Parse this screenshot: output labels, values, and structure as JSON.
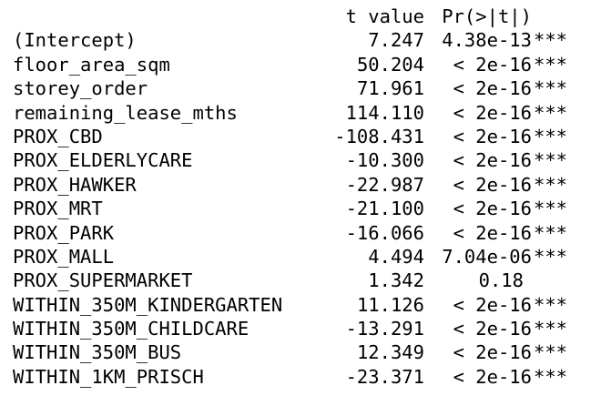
{
  "header": {
    "t_value": "t value",
    "p_value": "Pr(>|t|)"
  },
  "rows": [
    {
      "term": "(Intercept)",
      "t": "7.247",
      "p": "4.38e-13",
      "sig": "***"
    },
    {
      "term": "floor_area_sqm",
      "t": "50.204",
      "p": "< 2e-16",
      "sig": "***"
    },
    {
      "term": "storey_order",
      "t": "71.961",
      "p": "< 2e-16",
      "sig": "***"
    },
    {
      "term": "remaining_lease_mths",
      "t": "114.110",
      "p": "< 2e-16",
      "sig": "***"
    },
    {
      "term": "PROX_CBD",
      "t": "-108.431",
      "p": "< 2e-16",
      "sig": "***"
    },
    {
      "term": "PROX_ELDERLYCARE",
      "t": "-10.300",
      "p": "< 2e-16",
      "sig": "***"
    },
    {
      "term": "PROX_HAWKER",
      "t": "-22.987",
      "p": "< 2e-16",
      "sig": "***"
    },
    {
      "term": "PROX_MRT",
      "t": "-21.100",
      "p": "< 2e-16",
      "sig": "***"
    },
    {
      "term": "PROX_PARK",
      "t": "-16.066",
      "p": "< 2e-16",
      "sig": "***"
    },
    {
      "term": "PROX_MALL",
      "t": "4.494",
      "p": "7.04e-06",
      "sig": "***"
    },
    {
      "term": "PROX_SUPERMARKET",
      "t": "1.342",
      "p": "0.18",
      "sig": ""
    },
    {
      "term": "WITHIN_350M_KINDERGARTEN",
      "t": "11.126",
      "p": "< 2e-16",
      "sig": "***"
    },
    {
      "term": "WITHIN_350M_CHILDCARE",
      "t": "-13.291",
      "p": "< 2e-16",
      "sig": "***"
    },
    {
      "term": "WITHIN_350M_BUS",
      "t": "12.349",
      "p": "< 2e-16",
      "sig": "***"
    },
    {
      "term": "WITHIN_1KM_PRISCH",
      "t": "-23.371",
      "p": "< 2e-16",
      "sig": "***"
    }
  ]
}
